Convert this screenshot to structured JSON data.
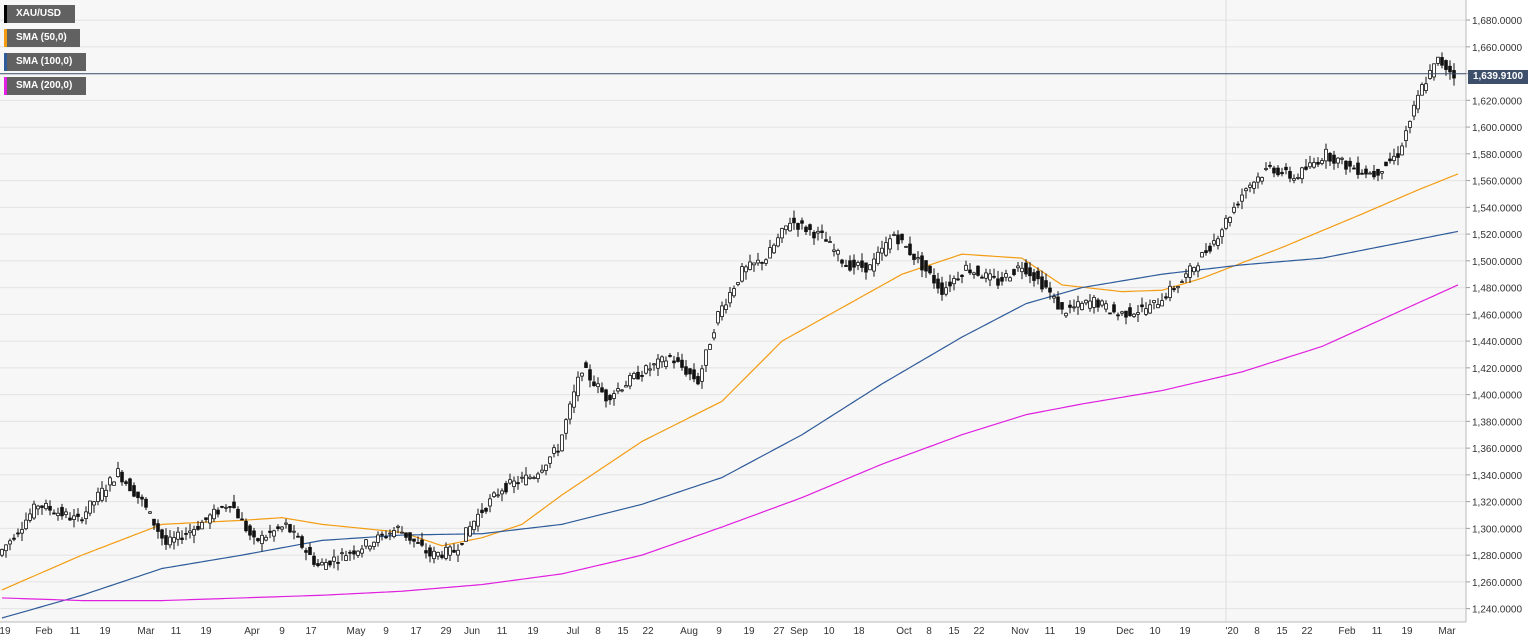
{
  "legend": [
    {
      "label": "XAU/USD",
      "color": "#000000"
    },
    {
      "label": "SMA (50,0)",
      "color": "#f39c12"
    },
    {
      "label": "SMA (100,0)",
      "color": "#2e5b9a"
    },
    {
      "label": "SMA (200,0)",
      "color": "#e020e0"
    }
  ],
  "current_price_label": "1,639.9100",
  "chart_data": {
    "type": "candlestick",
    "title": "",
    "xlabel": "",
    "ylabel": "",
    "ylim": [
      1230,
      1695
    ],
    "y_ticks": [
      1240,
      1260,
      1280,
      1300,
      1320,
      1340,
      1360,
      1380,
      1400,
      1420,
      1440,
      1460,
      1480,
      1500,
      1520,
      1540,
      1560,
      1580,
      1600,
      1620,
      1640,
      1660,
      1680
    ],
    "y_tick_labels": [
      "1,240.0000",
      "1,260.0000",
      "1,280.0000",
      "1,300.0000",
      "1,320.0000",
      "1,340.0000",
      "1,360.0000",
      "1,380.0000",
      "1,400.0000",
      "1,420.0000",
      "1,440.0000",
      "1,460.0000",
      "1,480.0000",
      "1,500.0000",
      "1,520.0000",
      "1,540.0000",
      "1,560.0000",
      "1,580.0000",
      "1,600.0000",
      "1,620.0000",
      "1,640.0000",
      "1,660.0000",
      "1,680.0000"
    ],
    "x_ticks": [
      "'19",
      "Feb",
      "11",
      "19",
      "Mar",
      "11",
      "19",
      "Apr",
      "9",
      "17",
      "May",
      "9",
      "17",
      "29",
      "Jun",
      "11",
      "19",
      "Jul",
      "8",
      "15",
      "22",
      "Aug",
      "9",
      "19",
      "27",
      "Sep",
      "10",
      "18",
      "Oct",
      "8",
      "15",
      "22",
      "Nov",
      "11",
      "19",
      "Dec",
      "10",
      "19",
      "'20",
      "8",
      "15",
      "22",
      "Feb",
      "11",
      "19",
      "Mar"
    ],
    "grid": true,
    "current_price": 1639.91,
    "series": [
      {
        "name": "XAU/USD",
        "kind": "candles",
        "anchors": [
          [
            0,
            1280
          ],
          [
            10,
            1318
          ],
          [
            20,
            1306
          ],
          [
            30,
            1342
          ],
          [
            36,
            1320
          ],
          [
            42,
            1288
          ],
          [
            50,
            1302
          ],
          [
            58,
            1320
          ],
          [
            64,
            1290
          ],
          [
            72,
            1302
          ],
          [
            80,
            1272
          ],
          [
            90,
            1285
          ],
          [
            100,
            1300
          ],
          [
            108,
            1280
          ],
          [
            114,
            1283
          ],
          [
            120,
            1310
          ],
          [
            126,
            1330
          ],
          [
            134,
            1340
          ],
          [
            140,
            1360
          ],
          [
            146,
            1420
          ],
          [
            152,
            1398
          ],
          [
            160,
            1415
          ],
          [
            168,
            1428
          ],
          [
            175,
            1410
          ],
          [
            180,
            1460
          ],
          [
            186,
            1492
          ],
          [
            192,
            1502
          ],
          [
            198,
            1530
          ],
          [
            206,
            1518
          ],
          [
            212,
            1497
          ],
          [
            218,
            1495
          ],
          [
            224,
            1520
          ],
          [
            230,
            1500
          ],
          [
            236,
            1478
          ],
          [
            242,
            1495
          ],
          [
            250,
            1484
          ],
          [
            256,
            1497
          ],
          [
            262,
            1480
          ],
          [
            266,
            1462
          ],
          [
            274,
            1470
          ],
          [
            280,
            1460
          ],
          [
            288,
            1465
          ],
          [
            296,
            1485
          ],
          [
            304,
            1515
          ],
          [
            312,
            1555
          ],
          [
            318,
            1570
          ],
          [
            324,
            1562
          ],
          [
            332,
            1580
          ],
          [
            338,
            1570
          ],
          [
            344,
            1565
          ],
          [
            350,
            1580
          ],
          [
            356,
            1630
          ],
          [
            360,
            1650
          ],
          [
            364,
            1640
          ]
        ]
      },
      {
        "name": "SMA (50,0)",
        "kind": "line",
        "anchors": [
          [
            0,
            1254
          ],
          [
            20,
            1280
          ],
          [
            40,
            1303
          ],
          [
            60,
            1306
          ],
          [
            70,
            1308
          ],
          [
            80,
            1303
          ],
          [
            100,
            1297
          ],
          [
            110,
            1287
          ],
          [
            120,
            1293
          ],
          [
            130,
            1303
          ],
          [
            140,
            1325
          ],
          [
            160,
            1365
          ],
          [
            180,
            1395
          ],
          [
            195,
            1440
          ],
          [
            210,
            1465
          ],
          [
            225,
            1490
          ],
          [
            240,
            1505
          ],
          [
            255,
            1502
          ],
          [
            265,
            1482
          ],
          [
            280,
            1477
          ],
          [
            290,
            1478
          ],
          [
            300,
            1487
          ],
          [
            320,
            1510
          ],
          [
            340,
            1535
          ],
          [
            354,
            1553
          ],
          [
            364,
            1565
          ]
        ]
      },
      {
        "name": "SMA (100,0)",
        "kind": "line",
        "anchors": [
          [
            0,
            1233
          ],
          [
            20,
            1250
          ],
          [
            40,
            1270
          ],
          [
            60,
            1280
          ],
          [
            80,
            1291
          ],
          [
            100,
            1295
          ],
          [
            120,
            1296
          ],
          [
            140,
            1303
          ],
          [
            160,
            1318
          ],
          [
            180,
            1338
          ],
          [
            200,
            1370
          ],
          [
            220,
            1408
          ],
          [
            240,
            1443
          ],
          [
            256,
            1468
          ],
          [
            270,
            1480
          ],
          [
            290,
            1490
          ],
          [
            310,
            1497
          ],
          [
            330,
            1502
          ],
          [
            364,
            1522
          ]
        ]
      },
      {
        "name": "SMA (200,0)",
        "kind": "line",
        "anchors": [
          [
            0,
            1248
          ],
          [
            20,
            1246
          ],
          [
            40,
            1246
          ],
          [
            60,
            1248
          ],
          [
            80,
            1250
          ],
          [
            100,
            1253
          ],
          [
            120,
            1258
          ],
          [
            140,
            1266
          ],
          [
            160,
            1280
          ],
          [
            180,
            1301
          ],
          [
            200,
            1323
          ],
          [
            220,
            1348
          ],
          [
            240,
            1370
          ],
          [
            256,
            1385
          ],
          [
            270,
            1393
          ],
          [
            290,
            1403
          ],
          [
            310,
            1417
          ],
          [
            330,
            1436
          ],
          [
            364,
            1482
          ]
        ]
      }
    ]
  }
}
